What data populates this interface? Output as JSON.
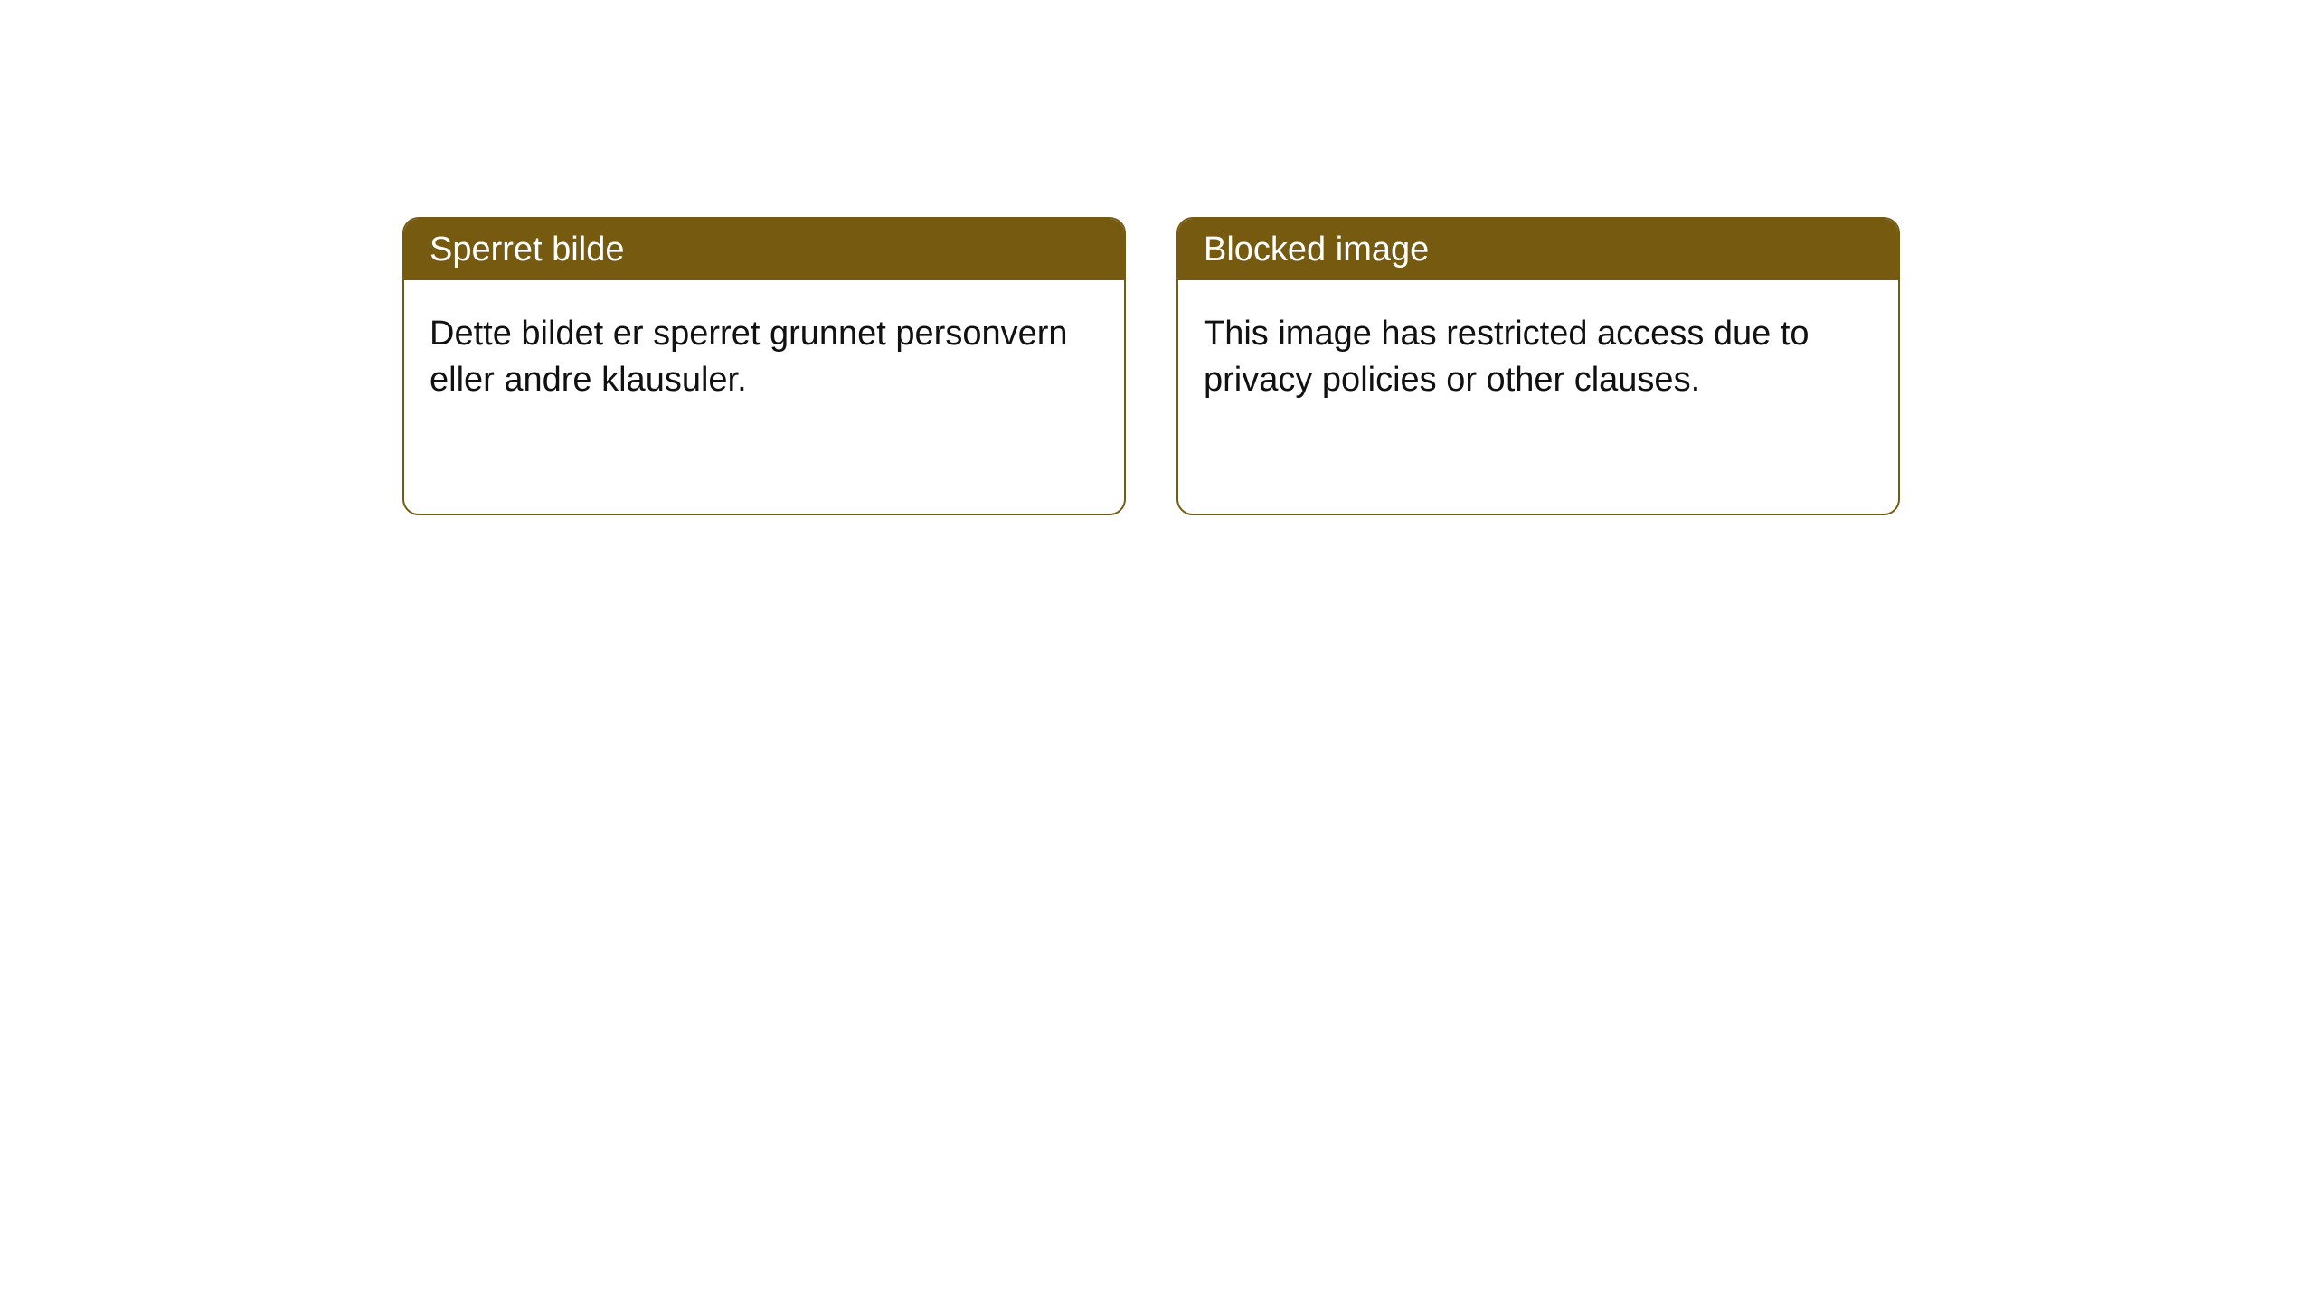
{
  "styling": {
    "card": {
      "header_bg": "#755a10",
      "header_text_color": "#ffffff",
      "border_color": "#755a10",
      "border_width": "2px",
      "border_radius": "18px",
      "body_bg": "#ffffff",
      "body_text_color": "#111111",
      "header_fontsize": 38,
      "body_fontsize": 38
    },
    "page_bg": "#ffffff"
  },
  "cards": [
    {
      "lang": "no",
      "title": "Sperret bilde",
      "body": "Dette bildet er sperret grunnet personvern eller andre klausuler."
    },
    {
      "lang": "en",
      "title": "Blocked image",
      "body": "This image has restricted access due to privacy policies or other clauses."
    }
  ]
}
